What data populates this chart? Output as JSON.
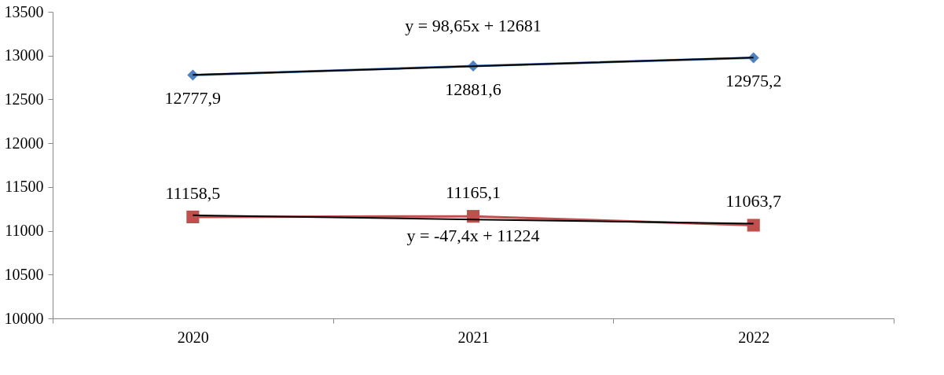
{
  "chart_data": {
    "type": "line",
    "categories": [
      "2020",
      "2021",
      "2022"
    ],
    "series": [
      {
        "color": "#4f81bd",
        "marker": "diamond",
        "values": [
          12777.9,
          12881.6,
          12975.2
        ],
        "value_labels": [
          "12777,9",
          "12881,6",
          "12975,2"
        ]
      },
      {
        "color": "#c0504d",
        "marker": "square",
        "values": [
          11158.5,
          11165.1,
          11063.7
        ],
        "value_labels": [
          "11158,5",
          "11165,1",
          "11063,7"
        ]
      },
      {
        "color": "#000000",
        "marker": "none",
        "values": [
          12780,
          12878,
          12977
        ]
      },
      {
        "color": "#000000",
        "marker": "none",
        "values": [
          11177,
          11129,
          11082
        ]
      }
    ],
    "annotations": [
      "y = 98,65x + 12681",
      "y = -47,4x + 11224"
    ],
    "ylim": [
      10000,
      13500
    ],
    "yticks": [
      10000,
      10500,
      11000,
      11500,
      12000,
      12500,
      13000,
      13500
    ],
    "grid": false
  }
}
